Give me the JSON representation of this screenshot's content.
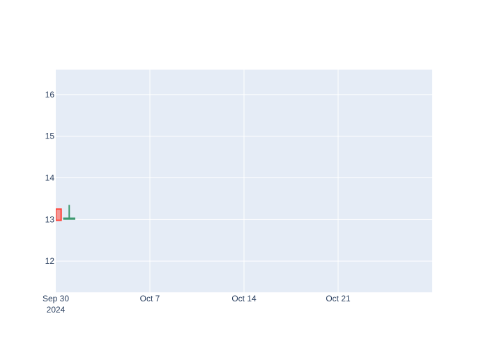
{
  "chart_data": {
    "type": "candlestick",
    "x_axis": {
      "type": "date",
      "range": [
        "2024-09-30",
        "2024-10-28"
      ],
      "ticks": [
        {
          "date": "2024-09-30",
          "label": "Sep 30",
          "sublabel": "2024"
        },
        {
          "date": "2024-10-07",
          "label": "Oct 7",
          "sublabel": ""
        },
        {
          "date": "2024-10-14",
          "label": "Oct 14",
          "sublabel": ""
        },
        {
          "date": "2024-10-21",
          "label": "Oct 21",
          "sublabel": ""
        }
      ]
    },
    "y_axis": {
      "range": [
        11.25,
        16.6
      ],
      "ticks": [
        12,
        13,
        14,
        15,
        16
      ]
    },
    "grid": true,
    "candles": [
      {
        "date": "2024-09-30",
        "open": 13.25,
        "high": 13.25,
        "low": 12.98,
        "close": 12.98,
        "direction": "decreasing"
      },
      {
        "date": "2024-10-01",
        "open": 13.01,
        "high": 13.35,
        "low": 13.01,
        "close": 13.03,
        "direction": "increasing"
      }
    ],
    "colors": {
      "increasing": "#3d9970",
      "decreasing": "#ff4136",
      "plot_bg": "#e5ecf6",
      "grid": "#ffffff",
      "text": "#2a3f5f"
    }
  }
}
